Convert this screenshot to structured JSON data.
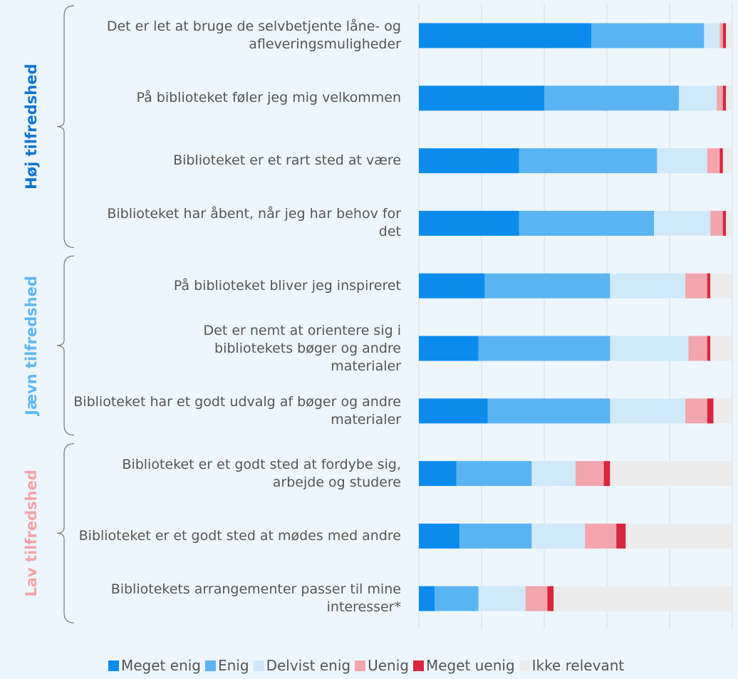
{
  "chart_data": {
    "type": "stacked_bar_horizontal",
    "xlim": [
      0,
      100
    ],
    "xticks": [
      0,
      20,
      40,
      60,
      80,
      100
    ],
    "grid": true,
    "legend": "bottom",
    "groups": [
      {
        "label": "Høj tilfredshed",
        "color": "#0a75d1",
        "categories": [
          "Det er let at bruge de selvbetjente låne- og afleveringsmuligheder",
          "På biblioteket føler jeg mig velkommen",
          "Biblioteket er et rart sted at være",
          "Biblioteket har åbent, når jeg har behov for det"
        ]
      },
      {
        "label": "Jævn tilfredshed",
        "color": "#5bb8f5",
        "categories": [
          "På biblioteket bliver jeg inspireret",
          "Det er nemt at orientere sig i bibliotekets bøger og andre materialer",
          "Biblioteket har et godt udvalg af bøger og andre materialer"
        ]
      },
      {
        "label": "Lav tilfredshed",
        "color": "#f4a3ab",
        "categories": [
          "Biblioteket er et godt sted at fordybe sig, arbejde og studere",
          "Biblioteket er et godt sted at mødes med andre",
          "Bibliotekets arrangementer passer til mine interesser*"
        ]
      }
    ],
    "series": [
      {
        "name": "Meget enig",
        "color": "#0b8cec",
        "values": [
          55,
          40,
          32,
          32,
          21,
          19,
          22,
          12,
          13,
          5
        ]
      },
      {
        "name": "Enig",
        "color": "#5ab4f2",
        "values": [
          36,
          43,
          44,
          43,
          40,
          42,
          39,
          24,
          23,
          14
        ]
      },
      {
        "name": "Delvist enig",
        "color": "#cfe9fb",
        "values": [
          5,
          12,
          16,
          18,
          24,
          25,
          24,
          14,
          17,
          15
        ]
      },
      {
        "name": "Uenig",
        "color": "#f2a5ad",
        "values": [
          1,
          2,
          4,
          4,
          7,
          6,
          7,
          9,
          10,
          7
        ]
      },
      {
        "name": "Meget uenig",
        "color": "#d7263d",
        "values": [
          1,
          1,
          1,
          1,
          1,
          1,
          2,
          2,
          3,
          2
        ]
      },
      {
        "name": "Ikke relevant",
        "color": "#ebebeb",
        "values": [
          2,
          2,
          3,
          2,
          7,
          7,
          6,
          39,
          34,
          57
        ]
      }
    ]
  }
}
